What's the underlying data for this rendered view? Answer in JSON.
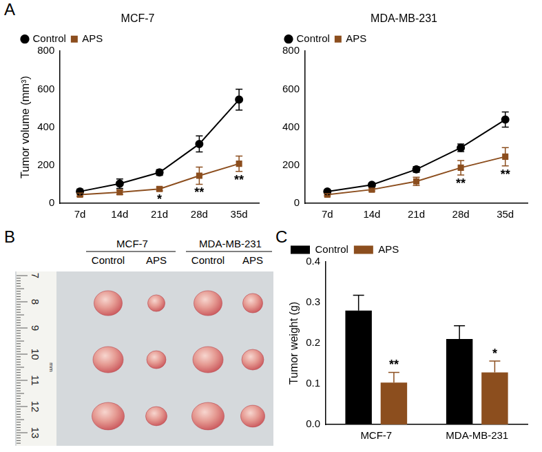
{
  "chart_data": [
    {
      "type": "line",
      "panel": "A",
      "title": "MCF-7",
      "y_label": "Tumor volume (mm³)",
      "categories": [
        "7d",
        "14d",
        "21d",
        "28d",
        "35d"
      ],
      "series": [
        {
          "name": "Control",
          "color": "#000000",
          "marker": "circle",
          "values": [
            62,
            103,
            162,
            312,
            545
          ],
          "error": [
            12,
            25,
            15,
            42,
            55
          ]
        },
        {
          "name": "APS",
          "color": "#8c4e1e",
          "marker": "square",
          "values": [
            45,
            58,
            75,
            145,
            208
          ],
          "error": [
            8,
            12,
            10,
            45,
            40
          ]
        }
      ],
      "ylim": [
        0,
        800
      ],
      "yticks": [
        0,
        200,
        400,
        600,
        800
      ],
      "grid": false,
      "legend": "top left",
      "annotations": [
        {
          "x": "21d",
          "series": "APS",
          "text": "*"
        },
        {
          "x": "28d",
          "series": "APS",
          "text": "**"
        },
        {
          "x": "35d",
          "series": "APS",
          "text": "**"
        }
      ]
    },
    {
      "type": "line",
      "title": "MDA-MB-231",
      "categories": [
        "7d",
        "14d",
        "21d",
        "28d",
        "35d"
      ],
      "series": [
        {
          "name": "Control",
          "color": "#000000",
          "marker": "circle",
          "values": [
            62,
            97,
            178,
            292,
            440
          ],
          "error": [
            8,
            8,
            15,
            20,
            40
          ]
        },
        {
          "name": "APS",
          "color": "#8c4e1e",
          "marker": "square",
          "values": [
            45,
            72,
            115,
            187,
            245
          ],
          "error": [
            6,
            8,
            22,
            38,
            48
          ]
        }
      ],
      "ylim": [
        0,
        800
      ],
      "yticks": [
        0,
        200,
        400,
        600,
        800
      ],
      "grid": false,
      "legend": "top left",
      "annotations": [
        {
          "x": "28d",
          "series": "APS",
          "text": "**"
        },
        {
          "x": "35d",
          "series": "APS",
          "text": "**"
        }
      ]
    },
    {
      "type": "bar",
      "panel": "C",
      "y_label": "Tumor weight (g)",
      "categories": [
        "MCF-7",
        "MDA-MB-231"
      ],
      "series": [
        {
          "name": "Control",
          "color": "#000000",
          "values": [
            0.28,
            0.21
          ],
          "error": [
            0.038,
            0.033
          ]
        },
        {
          "name": "APS",
          "color": "#8c4e1e",
          "values": [
            0.103,
            0.128
          ],
          "error": [
            0.025,
            0.028
          ]
        }
      ],
      "ylim": [
        0,
        0.4
      ],
      "yticks": [
        {
          "value": 0,
          "label": "0.0"
        },
        {
          "value": 0.1,
          "label": "0.1"
        },
        {
          "value": 0.2,
          "label": "0.2"
        },
        {
          "value": 0.3,
          "label": "0.3"
        },
        {
          "value": 0.4,
          "label": "0.4"
        }
      ],
      "grid": false,
      "legend": "top left",
      "annotations": [
        {
          "x": "MCF-7",
          "series": "APS",
          "text": "**"
        },
        {
          "x": "MDA-MB-231",
          "series": "APS",
          "text": "*"
        }
      ]
    }
  ],
  "photo": {
    "panel": "B",
    "groups": [
      {
        "name": "MCF-7",
        "columns": [
          "Control",
          "APS"
        ]
      },
      {
        "name": "MDA-MB-231",
        "columns": [
          "Control",
          "APS"
        ]
      }
    ],
    "ruler_labels": [
      "7",
      "8",
      "9",
      "10",
      "11",
      "12",
      "13"
    ],
    "ruler_unit": "mm"
  }
}
